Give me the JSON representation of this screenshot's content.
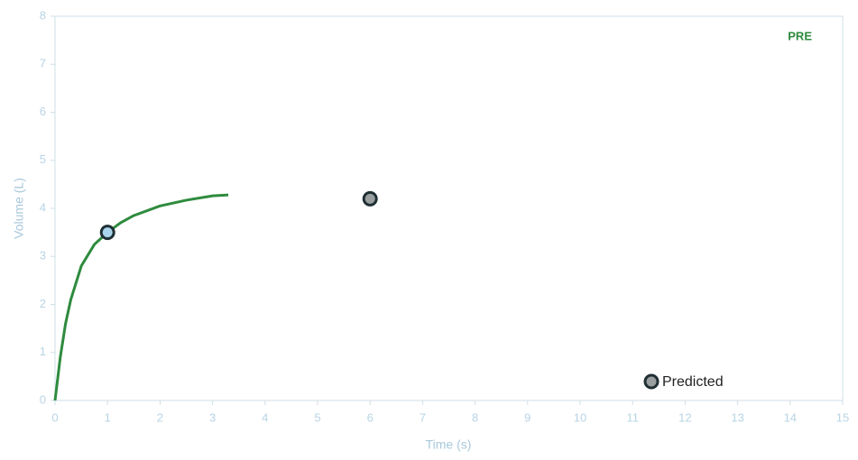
{
  "chart_data": {
    "type": "line",
    "x_label": "Time (s)",
    "y_label": "Volume (L)",
    "annotation": "PRE",
    "xlim": [
      0,
      15
    ],
    "xticks": [
      0,
      1,
      2,
      3,
      4,
      5,
      6,
      7,
      8,
      9,
      10,
      11,
      12,
      13,
      14,
      15
    ],
    "ylim": [
      0,
      8
    ],
    "yticks": [
      0,
      1,
      2,
      3,
      4,
      5,
      6,
      7,
      8
    ],
    "series": [
      {
        "color": "#2e8b3e",
        "x": [
          0,
          0.1,
          0.2,
          0.3,
          0.5,
          0.75,
          1,
          1.25,
          1.5,
          2,
          2.5,
          3,
          3.3
        ],
        "values": [
          0,
          0.9,
          1.6,
          2.1,
          2.8,
          3.25,
          3.5,
          3.7,
          3.85,
          4.05,
          4.17,
          4.26,
          4.28
        ]
      }
    ],
    "predicted": {
      "name": "Predicted",
      "x": [
        1,
        6
      ],
      "values": [
        3.5,
        4.2
      ],
      "colors": [
        "#a8d4ec",
        "#9aa0a0"
      ]
    }
  }
}
